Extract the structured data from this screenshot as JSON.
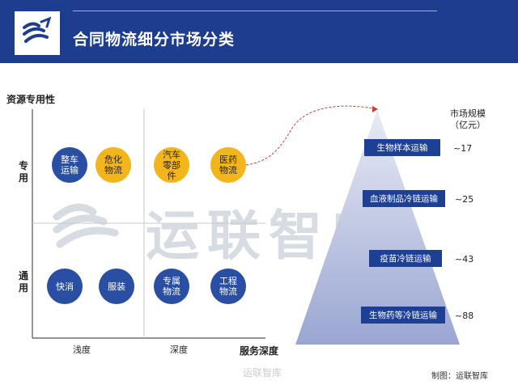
{
  "header": {
    "title": "合同物流细分市场分类"
  },
  "watermark": {
    "text": "运联智库"
  },
  "matrix": {
    "y_axis_title": "资源专用性",
    "x_axis_title": "服务深度",
    "y_ticks": {
      "high": "专用",
      "low": "通用"
    },
    "x_ticks": {
      "shallow": "浅度",
      "deep": "深度"
    },
    "items": [
      {
        "label": "整车运输",
        "color": "blue"
      },
      {
        "label": "危化物流",
        "color": "yellow"
      },
      {
        "label": "汽车零部件",
        "color": "yellow"
      },
      {
        "label": "医药物流",
        "color": "yellow"
      },
      {
        "label": "快消",
        "color": "blue"
      },
      {
        "label": "服装",
        "color": "blue"
      },
      {
        "label": "专属物流",
        "color": "blue"
      },
      {
        "label": "工程物流",
        "color": "blue"
      }
    ]
  },
  "pyramid": {
    "market_label": "市场规模（亿元）",
    "tiers": [
      {
        "label": "生物样本运输",
        "value": "~17"
      },
      {
        "label": "血液制品冷链运输",
        "value": "~25"
      },
      {
        "label": "疫苗冷链运输",
        "value": "~43"
      },
      {
        "label": "生物药等冷链运输",
        "value": "~88"
      }
    ]
  },
  "footer": {
    "source": "制图：运联智库",
    "watermark": "运联智库"
  },
  "colors": {
    "header_bg": "#1d3d8f",
    "circle_blue": "#2a4fa2",
    "circle_yellow": "#f2b51b",
    "tier_box": "#1d4094",
    "arrow_red": "#d23a3a"
  }
}
